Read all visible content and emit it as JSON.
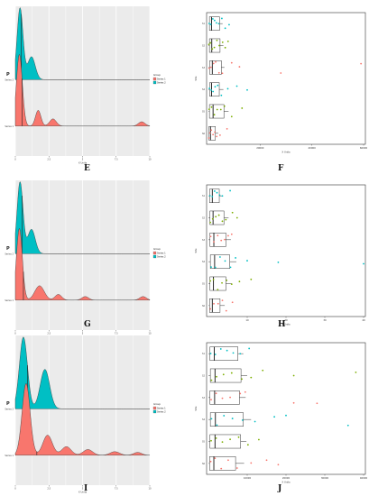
{
  "panel_letters": {
    "E": "E",
    "F": "F",
    "G": "G",
    "H": "H",
    "I": "I",
    "J": "J"
  },
  "chart_data": [
    {
      "panel": "E",
      "type": "area",
      "ylabel": "P",
      "xlabel": "X Units",
      "legend": {
        "title": "Group",
        "entries": [
          "Series 1",
          "Series 2"
        ],
        "colors": [
          "#f8766d",
          "#00bfc4"
        ],
        "placement": "right"
      },
      "group_labels": [
        "Series 2",
        "Series 1"
      ],
      "xlim": [
        0,
        10
      ],
      "x_ticks": [
        "0",
        "2.5",
        "5",
        "7.5",
        "10"
      ],
      "series": [
        {
          "name": "Series 2",
          "color": "#00bfc4",
          "peaks": [
            {
              "x": 0.35,
              "h": 1.0,
              "w": 0.22
            },
            {
              "x": 1.2,
              "h": 0.32,
              "w": 0.28
            }
          ],
          "median": 0.45
        },
        {
          "name": "Series 1",
          "color": "#f8766d",
          "peaks": [
            {
              "x": 0.3,
              "h": 1.0,
              "w": 0.22
            },
            {
              "x": 1.7,
              "h": 0.22,
              "w": 0.2
            },
            {
              "x": 2.8,
              "h": 0.1,
              "w": 0.25
            },
            {
              "x": 9.4,
              "h": 0.06,
              "w": 0.25
            }
          ],
          "median": 0.5
        }
      ]
    },
    {
      "panel": "F",
      "type": "scatter",
      "ylabel": "Site",
      "xlabel": "X Units",
      "xlim": [
        0,
        60000
      ],
      "x_ticks": [
        "20000",
        "40000",
        "60000"
      ],
      "categories": [
        "S1",
        "S2",
        "S3",
        "S4",
        "S5",
        "S6"
      ],
      "boxes": [
        {
          "q1": 400,
          "med": 1200,
          "q3": 4300,
          "lo": 50,
          "hi": 5500,
          "color": "#00bfc4",
          "pts": [
            300,
            900,
            1700,
            2400,
            3100,
            4000,
            5200,
            6500,
            8000
          ]
        },
        {
          "q1": 400,
          "med": 1300,
          "q3": 4500,
          "lo": 50,
          "hi": 5800,
          "color": "#7cae00",
          "pts": [
            200,
            800,
            1500,
            2300,
            3300,
            4200,
            5500,
            6500,
            7600
          ]
        },
        {
          "q1": 500,
          "med": 1500,
          "q3": 5000,
          "lo": 50,
          "hi": 6200,
          "color": "#f8766d",
          "pts": [
            300,
            1000,
            2000,
            2800,
            4100,
            5400,
            9000,
            12000,
            28000,
            59000
          ]
        },
        {
          "q1": 500,
          "med": 1200,
          "q3": 4200,
          "lo": 50,
          "hi": 5800,
          "color": "#00bfc4",
          "pts": [
            400,
            1100,
            1800,
            2600,
            3600,
            5000,
            7500,
            11000,
            15000
          ]
        },
        {
          "q1": 400,
          "med": 1800,
          "q3": 6000,
          "lo": 50,
          "hi": 7800,
          "color": "#7cae00",
          "pts": [
            300,
            1200,
            2300,
            3400,
            4800,
            6200,
            9000,
            13000
          ]
        },
        {
          "q1": 200,
          "med": 800,
          "q3": 2700,
          "lo": 50,
          "hi": 3800,
          "color": "#f8766d",
          "pts": [
            200,
            600,
            1100,
            1800,
            2500,
            3200,
            4500,
            7200
          ]
        }
      ]
    },
    {
      "panel": "G",
      "type": "area",
      "ylabel": "P",
      "xlabel": "",
      "legend": {
        "title": "Group",
        "entries": [
          "Series 1",
          "Series 2"
        ],
        "colors": [
          "#f8766d",
          "#00bfc4"
        ],
        "placement": "right"
      },
      "group_labels": [
        "Series 2",
        "Series 1"
      ],
      "xlim": [
        0,
        10
      ],
      "x_ticks": [
        "0",
        "2.5",
        "5",
        "7.5",
        "10"
      ],
      "series": [
        {
          "name": "Series 2",
          "color": "#00bfc4",
          "peaks": [
            {
              "x": 0.35,
              "h": 1.0,
              "w": 0.22
            },
            {
              "x": 1.2,
              "h": 0.34,
              "w": 0.28
            }
          ],
          "median": 0.5
        },
        {
          "name": "Series 1",
          "color": "#f8766d",
          "peaks": [
            {
              "x": 0.3,
              "h": 1.0,
              "w": 0.22
            },
            {
              "x": 1.8,
              "h": 0.2,
              "w": 0.35
            },
            {
              "x": 3.2,
              "h": 0.08,
              "w": 0.25
            },
            {
              "x": 5.2,
              "h": 0.05,
              "w": 0.25
            },
            {
              "x": 9.5,
              "h": 0.05,
              "w": 0.25
            }
          ],
          "median": 0.6
        }
      ]
    },
    {
      "panel": "H",
      "type": "scatter",
      "ylabel": "Site",
      "xlabel": "X Units",
      "xlim": [
        0,
        40
      ],
      "x_ticks": [
        "10",
        "20",
        "30",
        "40"
      ],
      "categories": [
        "S1",
        "S2",
        "S3",
        "S4",
        "S5",
        "S6"
      ],
      "boxes": [
        {
          "q1": 0.3,
          "med": 1.0,
          "q3": 2.8,
          "lo": 0.05,
          "hi": 3.5,
          "color": "#00bfc4",
          "pts": [
            0.4,
            1.0,
            1.6,
            2.2,
            2.9,
            3.6,
            5.6
          ]
        },
        {
          "q1": 0.4,
          "med": 1.2,
          "q3": 4.0,
          "lo": 0.05,
          "hi": 5.2,
          "color": "#7cae00",
          "pts": [
            0.5,
            1.1,
            1.9,
            2.7,
            3.6,
            4.5,
            6.2,
            7.4
          ]
        },
        {
          "q1": 0.4,
          "med": 1.4,
          "q3": 4.5,
          "lo": 0.05,
          "hi": 5.8,
          "color": "#f8766d",
          "pts": [
            0.6,
            1.4,
            2.4,
            3.3,
            4.2,
            5.1,
            6.0
          ]
        },
        {
          "q1": 0.5,
          "med": 1.6,
          "q3": 5.5,
          "lo": 0.05,
          "hi": 7.2,
          "color": "#00bfc4",
          "pts": [
            0.7,
            1.8,
            3.0,
            4.3,
            5.7,
            7.0,
            10.0,
            18.0,
            40.0
          ]
        },
        {
          "q1": 0.4,
          "med": 1.3,
          "q3": 4.5,
          "lo": 0.05,
          "hi": 6.0,
          "color": "#7cae00",
          "pts": [
            0.5,
            1.3,
            2.4,
            3.5,
            4.7,
            6.0,
            8.0,
            11.0
          ]
        },
        {
          "q1": 0.3,
          "med": 1.0,
          "q3": 3.0,
          "lo": 0.05,
          "hi": 4.2,
          "color": "#f8766d",
          "pts": [
            0.5,
            1.4,
            2.5,
            3.6,
            4.6,
            6.2
          ]
        }
      ]
    },
    {
      "panel": "I",
      "type": "area",
      "ylabel": "P",
      "xlabel": "X Units",
      "legend": {
        "title": "Group",
        "entries": [
          "Series 1",
          "Series 2"
        ],
        "colors": [
          "#f8766d",
          "#00bfc4"
        ],
        "placement": "right"
      },
      "group_labels": [
        "Series 2",
        "Series 1"
      ],
      "xlim": [
        0,
        10
      ],
      "x_ticks": [
        "0",
        "2.5",
        "5",
        "7.5",
        "10"
      ],
      "series": [
        {
          "name": "Series 2",
          "color": "#00bfc4",
          "peaks": [
            {
              "x": 0.6,
              "h": 1.0,
              "w": 0.3
            },
            {
              "x": 2.2,
              "h": 0.55,
              "w": 0.35
            }
          ],
          "median": 0.9
        },
        {
          "name": "Series 1",
          "color": "#f8766d",
          "peaks": [
            {
              "x": 0.8,
              "h": 1.0,
              "w": 0.3
            },
            {
              "x": 2.4,
              "h": 0.28,
              "w": 0.35
            },
            {
              "x": 3.8,
              "h": 0.12,
              "w": 0.35
            },
            {
              "x": 5.4,
              "h": 0.08,
              "w": 0.35
            },
            {
              "x": 7.4,
              "h": 0.05,
              "w": 0.35
            },
            {
              "x": 9.1,
              "h": 0.04,
              "w": 0.3
            }
          ],
          "median": 1.6
        }
      ]
    },
    {
      "panel": "J",
      "type": "scatter",
      "ylabel": "Site",
      "xlabel": "X Units",
      "xlim": [
        0,
        40000
      ],
      "x_ticks": [
        "10000",
        "20000",
        "30000",
        "40000"
      ],
      "categories": [
        "S1",
        "S2",
        "S3",
        "S4",
        "S5",
        "S6"
      ],
      "boxes": [
        {
          "q1": 400,
          "med": 1500,
          "q3": 7600,
          "lo": 50,
          "hi": 9000,
          "color": "#00bfc4",
          "pts": [
            600,
            1800,
            3200,
            4800,
            6400,
            8200,
            10500
          ]
        },
        {
          "q1": 500,
          "med": 1700,
          "q3": 8400,
          "lo": 50,
          "hi": 10000,
          "color": "#7cae00",
          "pts": [
            800,
            2100,
            3900,
            6000,
            8600,
            11000,
            14000,
            22000,
            38000
          ]
        },
        {
          "q1": 400,
          "med": 1600,
          "q3": 8000,
          "lo": 50,
          "hi": 9600,
          "color": "#f8766d",
          "pts": [
            700,
            2000,
            3600,
            5600,
            8200,
            9500,
            22000,
            28000,
            45000
          ]
        },
        {
          "q1": 500,
          "med": 1800,
          "q3": 9000,
          "lo": 50,
          "hi": 11000,
          "color": "#00bfc4",
          "pts": [
            800,
            2200,
            4000,
            6200,
            8800,
            12000,
            17000,
            20000,
            36000
          ]
        },
        {
          "q1": 400,
          "med": 1700,
          "q3": 8300,
          "lo": 50,
          "hi": 9800,
          "color": "#7cae00",
          "pts": [
            700,
            2000,
            3600,
            5600,
            7800,
            10200,
            13000
          ]
        },
        {
          "q1": 300,
          "med": 1400,
          "q3": 7000,
          "lo": 50,
          "hi": 9200,
          "color": "#f8766d",
          "pts": [
            600,
            1700,
            3300,
            5100,
            7400,
            11000,
            15000,
            18000
          ]
        }
      ]
    }
  ]
}
